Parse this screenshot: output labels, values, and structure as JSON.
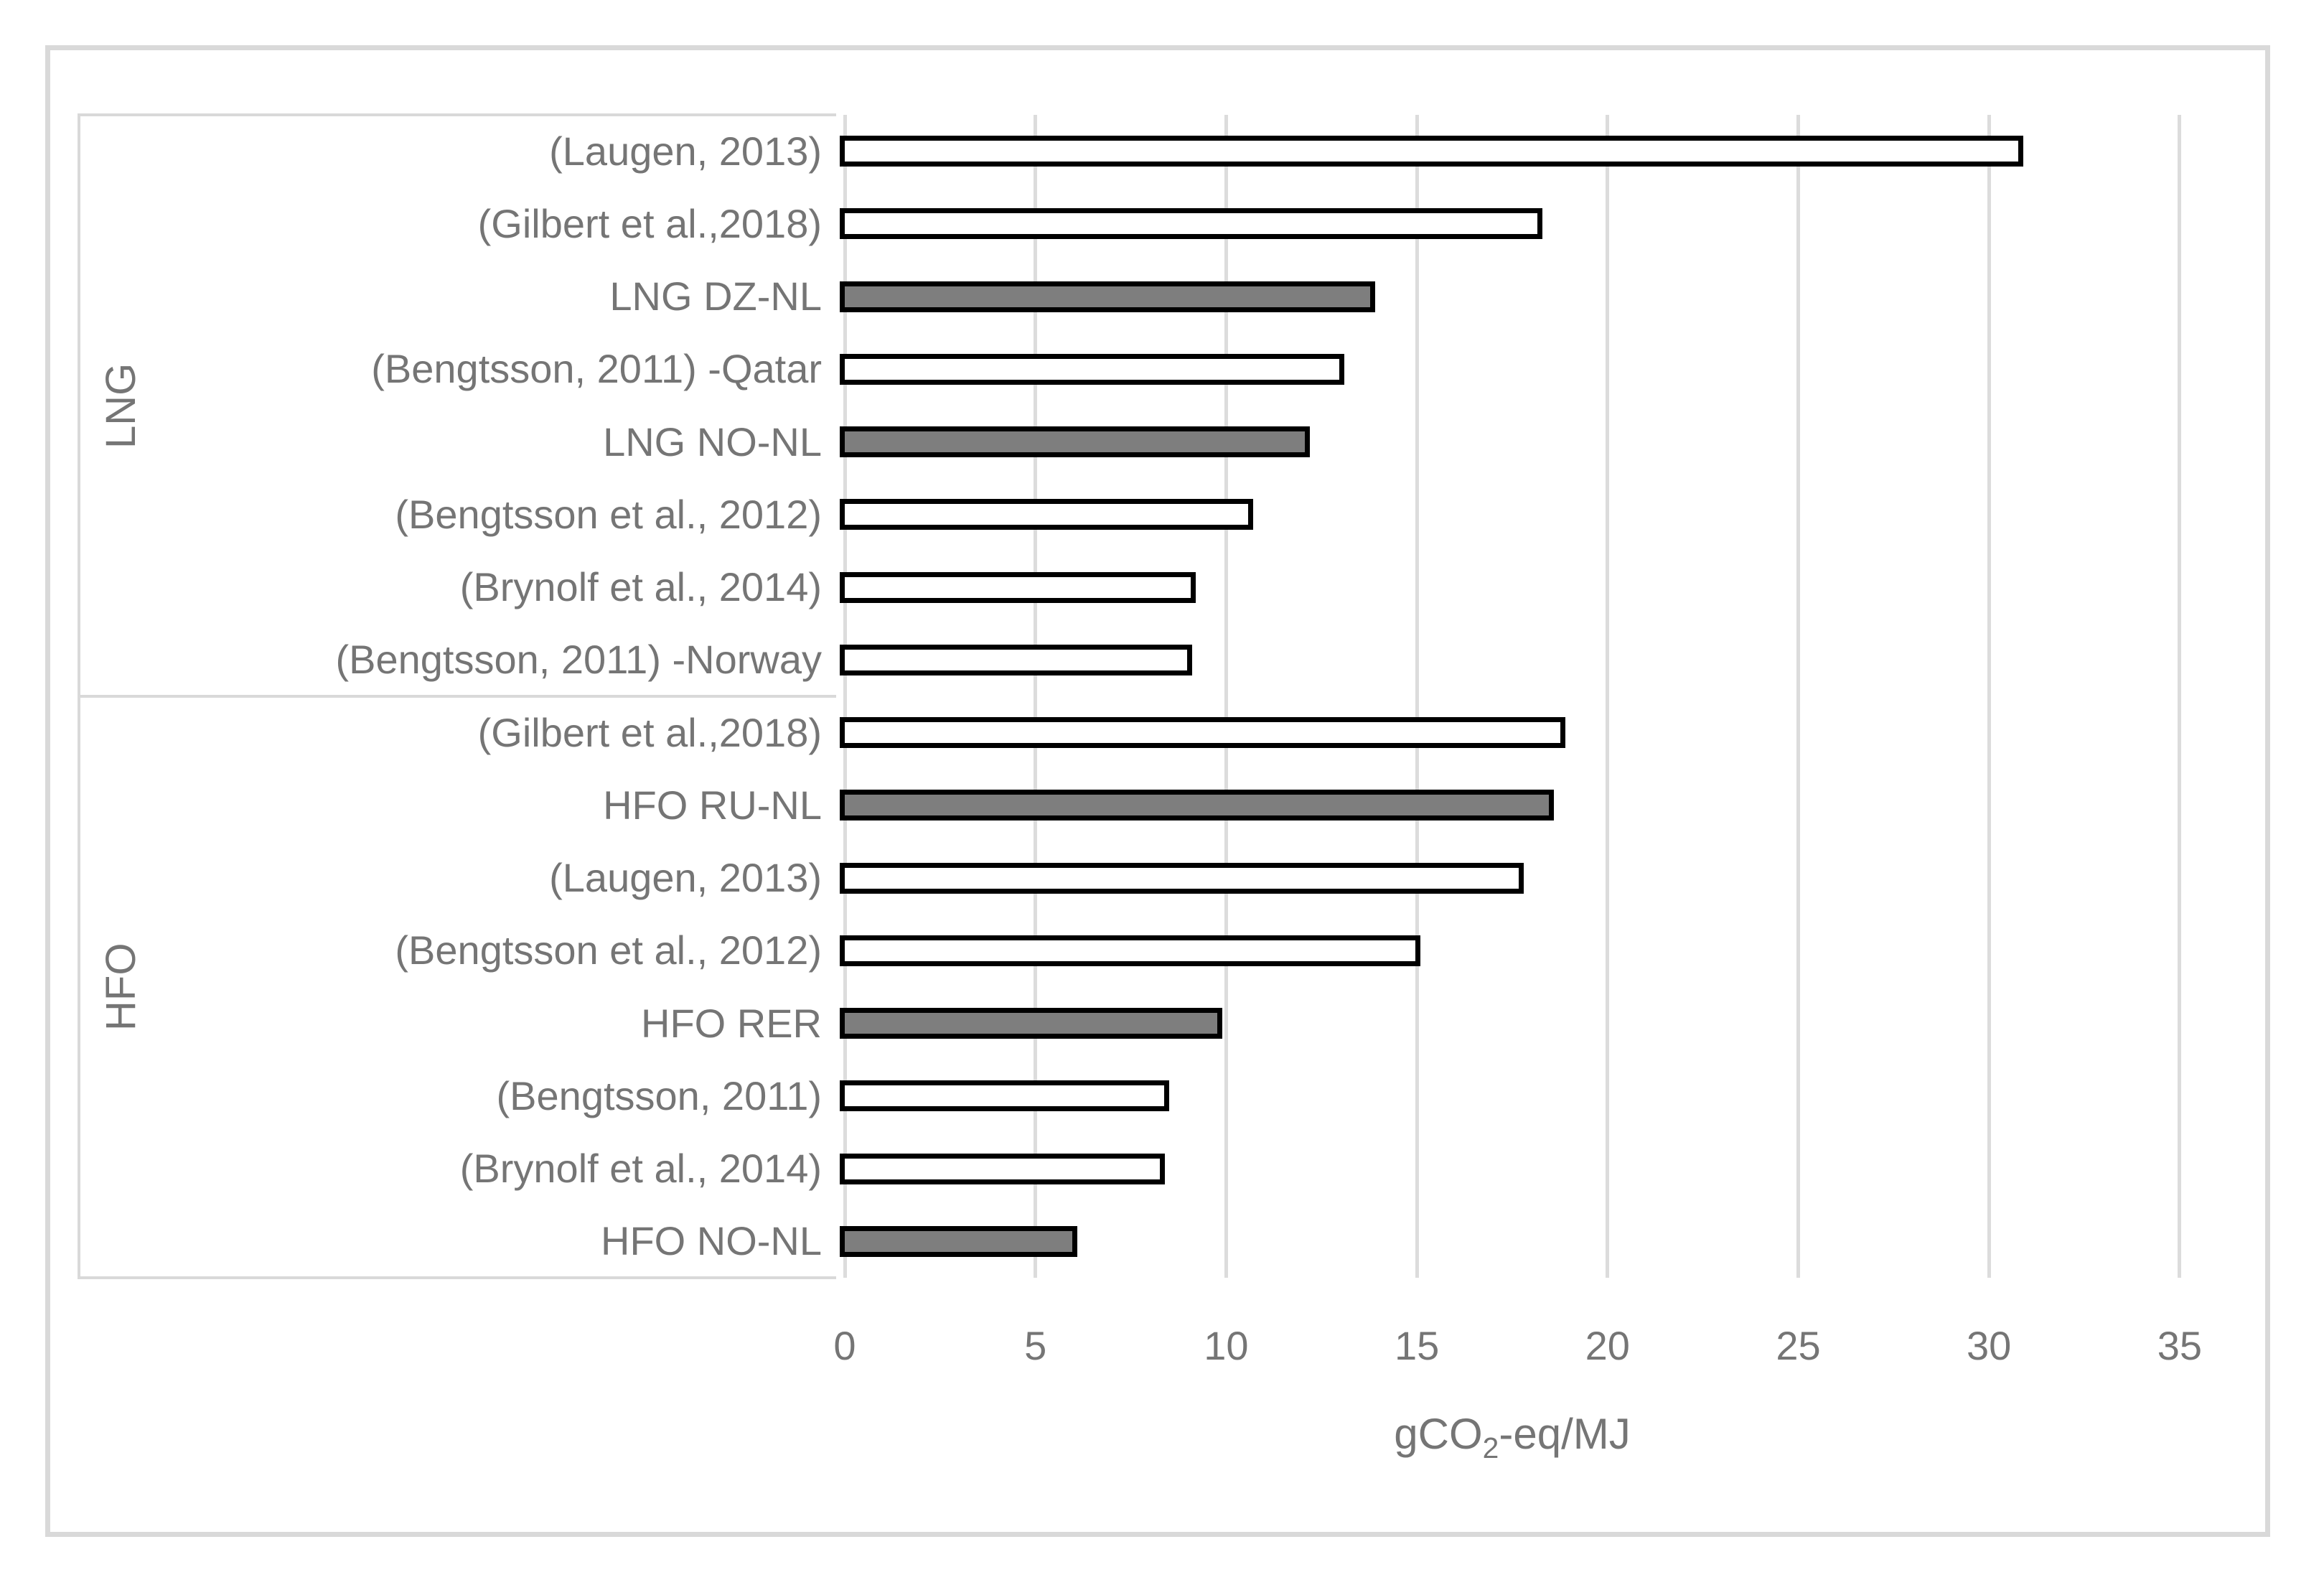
{
  "chart_data": {
    "type": "bar",
    "orientation": "horizontal",
    "xlabel_main": "gCO",
    "xlabel_sub": "2",
    "xlabel_rest": "-eq/MJ",
    "xlim": [
      0,
      35
    ],
    "xticks": [
      "0",
      "5",
      "10",
      "15",
      "20",
      "25",
      "30",
      "35"
    ],
    "grid": true,
    "groups": [
      {
        "label": "LNG",
        "items": [
          {
            "label": "(Laugen, 2013)",
            "value": 30.9,
            "highlighted": false
          },
          {
            "label": "(Gilbert et al.,2018)",
            "value": 18.3,
            "highlighted": false
          },
          {
            "label": "LNG DZ-NL",
            "value": 13.9,
            "highlighted": true
          },
          {
            "label": "(Bengtsson, 2011) -Qatar",
            "value": 13.1,
            "highlighted": false
          },
          {
            "label": "LNG NO-NL",
            "value": 12.2,
            "highlighted": true
          },
          {
            "label": "(Bengtsson et al., 2012)",
            "value": 10.7,
            "highlighted": false
          },
          {
            "label": "(Brynolf et al., 2014)",
            "value": 9.2,
            "highlighted": false
          },
          {
            "label": "(Bengtsson, 2011) -Norway",
            "value": 9.1,
            "highlighted": false
          }
        ]
      },
      {
        "label": "HFO",
        "items": [
          {
            "label": "(Gilbert et al.,2018)",
            "value": 18.9,
            "highlighted": false
          },
          {
            "label": "HFO RU-NL",
            "value": 18.6,
            "highlighted": true
          },
          {
            "label": "(Laugen, 2013)",
            "value": 17.8,
            "highlighted": false
          },
          {
            "label": "(Bengtsson et al., 2012)",
            "value": 15.1,
            "highlighted": false
          },
          {
            "label": "HFO RER",
            "value": 9.9,
            "highlighted": true
          },
          {
            "label": "(Bengtsson, 2011)",
            "value": 8.5,
            "highlighted": false
          },
          {
            "label": "(Brynolf et al., 2014)",
            "value": 8.4,
            "highlighted": false
          },
          {
            "label": "HFO NO-NL",
            "value": 6.1,
            "highlighted": true
          }
        ]
      }
    ],
    "colors": {
      "bar_fill_default": "#ffffff",
      "bar_fill_highlight": "#7e7e7e",
      "bar_border": "#000000",
      "gridline": "#dcdcdc",
      "category_frame": "#d9d9d9",
      "text": "#757575",
      "outer_frame": "#d9d9d9"
    }
  }
}
